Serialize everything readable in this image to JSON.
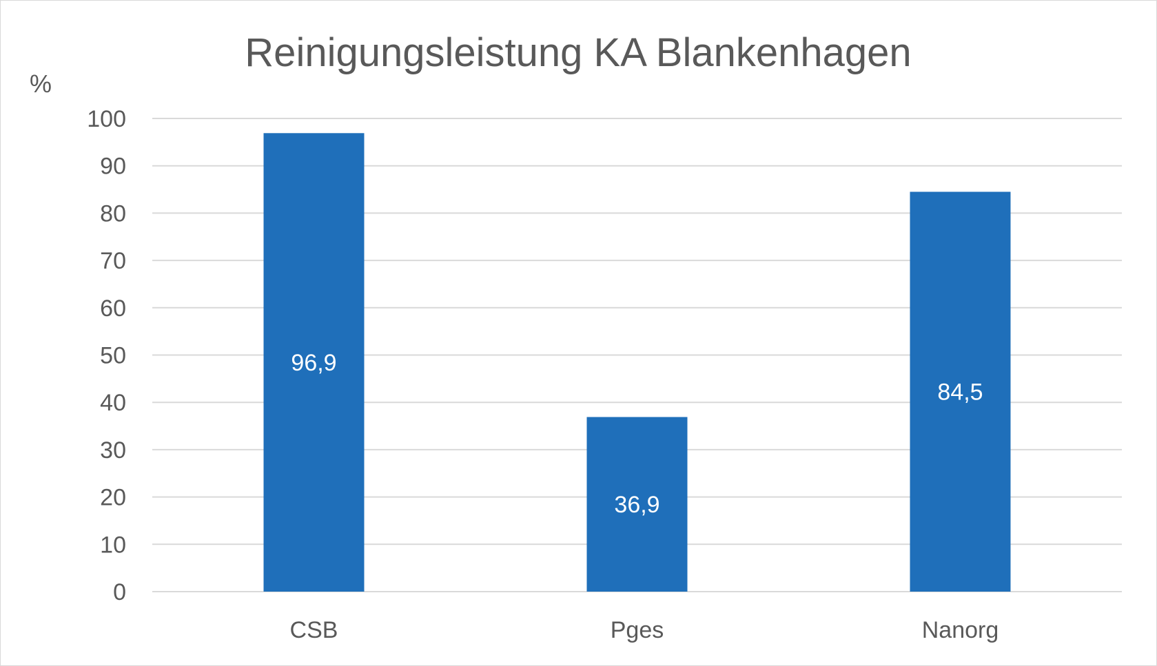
{
  "chart_data": {
    "type": "bar",
    "title": "Reinigungsleistung KA Blankenhagen",
    "ylabel": "%",
    "xlabel": "",
    "categories": [
      "CSB",
      "Pges",
      "Nanorg"
    ],
    "values": [
      96.9,
      36.9,
      84.5
    ],
    "value_labels": [
      "96,9",
      "36,9",
      "84,5"
    ],
    "yticks": [
      0,
      10,
      20,
      30,
      40,
      50,
      60,
      70,
      80,
      90,
      100
    ],
    "ylim": [
      0,
      100
    ],
    "grid": true,
    "legend": "none",
    "bar_color": "#1f6fba",
    "gridline_color": "#d9d9d9",
    "text_color": "#595959"
  }
}
